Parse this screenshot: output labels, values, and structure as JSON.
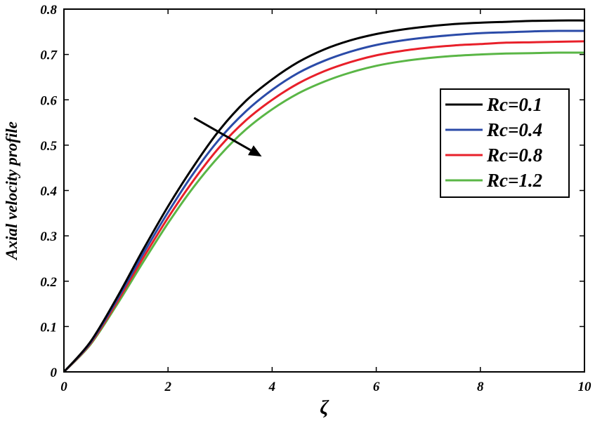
{
  "chart_data": {
    "type": "line",
    "title": "",
    "xlabel": "ζ",
    "ylabel": "Axial velocity profile",
    "xlim": [
      0,
      10
    ],
    "ylim": [
      0,
      0.8
    ],
    "xticks": [
      0,
      2,
      4,
      6,
      8,
      10
    ],
    "yticks": [
      0,
      0.1,
      0.2,
      0.3,
      0.4,
      0.5,
      0.6,
      0.7,
      0.8
    ],
    "xtick_labels": [
      "0",
      "2",
      "4",
      "6",
      "8",
      "10"
    ],
    "ytick_labels": [
      "0",
      "0.1",
      "0.2",
      "0.3",
      "0.4",
      "0.5",
      "0.6",
      "0.7",
      "0.8"
    ],
    "grid": false,
    "legend_position": "right",
    "x": [
      0,
      0.5,
      1,
      1.5,
      2,
      2.5,
      3,
      3.5,
      4,
      4.5,
      5,
      5.5,
      6,
      6.5,
      7,
      7.5,
      8,
      8.5,
      9,
      9.5,
      10
    ],
    "series": [
      {
        "name": "Rc=0.1",
        "color": "#000000",
        "values": [
          0,
          0.065,
          0.16,
          0.265,
          0.365,
          0.455,
          0.535,
          0.598,
          0.645,
          0.683,
          0.711,
          0.731,
          0.745,
          0.755,
          0.762,
          0.767,
          0.77,
          0.772,
          0.774,
          0.775,
          0.775
        ]
      },
      {
        "name": "Rc=0.4",
        "color": "#2b4ba8",
        "values": [
          0,
          0.063,
          0.155,
          0.256,
          0.352,
          0.44,
          0.515,
          0.575,
          0.622,
          0.659,
          0.686,
          0.706,
          0.721,
          0.731,
          0.738,
          0.743,
          0.747,
          0.749,
          0.751,
          0.752,
          0.752
        ]
      },
      {
        "name": "Rc=0.8",
        "color": "#e8202a",
        "values": [
          0,
          0.061,
          0.15,
          0.247,
          0.34,
          0.424,
          0.497,
          0.555,
          0.6,
          0.636,
          0.663,
          0.683,
          0.698,
          0.708,
          0.715,
          0.72,
          0.723,
          0.726,
          0.727,
          0.728,
          0.729
        ]
      },
      {
        "name": "Rc=1.2",
        "color": "#5ab646",
        "values": [
          0,
          0.059,
          0.145,
          0.238,
          0.328,
          0.409,
          0.478,
          0.535,
          0.579,
          0.614,
          0.64,
          0.66,
          0.675,
          0.685,
          0.692,
          0.697,
          0.7,
          0.702,
          0.703,
          0.704,
          0.704
        ]
      }
    ],
    "annotation": {
      "type": "arrow",
      "meaning": "increasing Rc",
      "from": [
        2.5,
        0.56
      ],
      "to": [
        3.8,
        0.475
      ]
    }
  }
}
